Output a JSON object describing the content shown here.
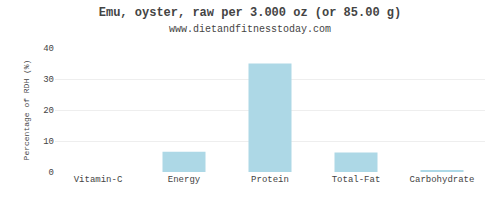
{
  "chart_data": {
    "type": "bar",
    "title": "Emu, oyster, raw per 3.000 oz (or 85.00 g)",
    "subtitle": "www.dietandfitnesstoday.com",
    "categories": [
      "Vitamin-C",
      "Energy",
      "Protein",
      "Total-Fat",
      "Carbohydrate"
    ],
    "values": [
      0,
      6.5,
      35,
      6.3,
      0.5
    ],
    "color": "#ADD8E6",
    "ylabel": "Percentage of RDH (%)",
    "ylim": [
      0,
      40
    ],
    "yticks": [
      0,
      10,
      20,
      30,
      40
    ],
    "grid": true
  }
}
